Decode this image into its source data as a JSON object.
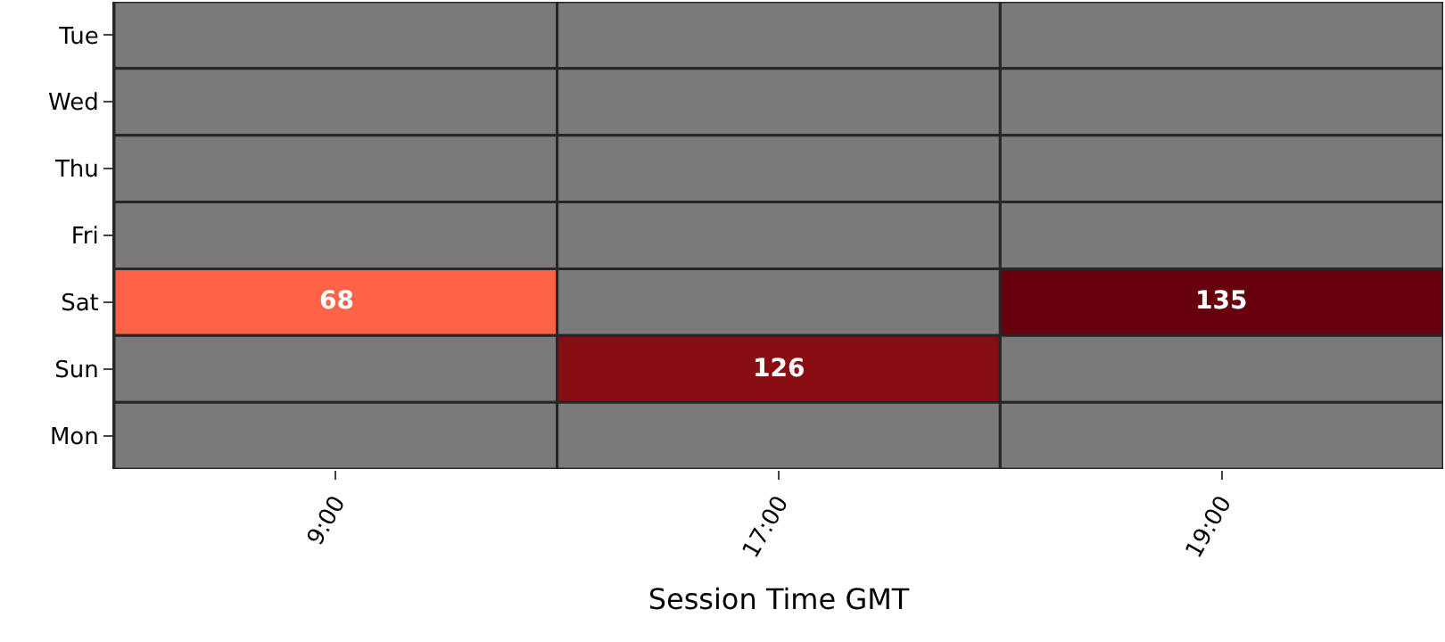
{
  "chart_data": {
    "type": "heatmap",
    "xlabel": "Session Time GMT",
    "categories": [
      "9:00",
      "17:00",
      "19:00"
    ],
    "y_categories": [
      "Tue",
      "Wed",
      "Thu",
      "Fri",
      "Sat",
      "Sun",
      "Mon"
    ],
    "cells": [
      [
        null,
        null,
        null
      ],
      [
        null,
        null,
        null
      ],
      [
        null,
        null,
        null
      ],
      [
        null,
        null,
        null
      ],
      [
        68,
        null,
        135
      ],
      [
        null,
        126,
        null
      ],
      [
        null,
        null,
        null
      ]
    ],
    "data_labels": true
  }
}
